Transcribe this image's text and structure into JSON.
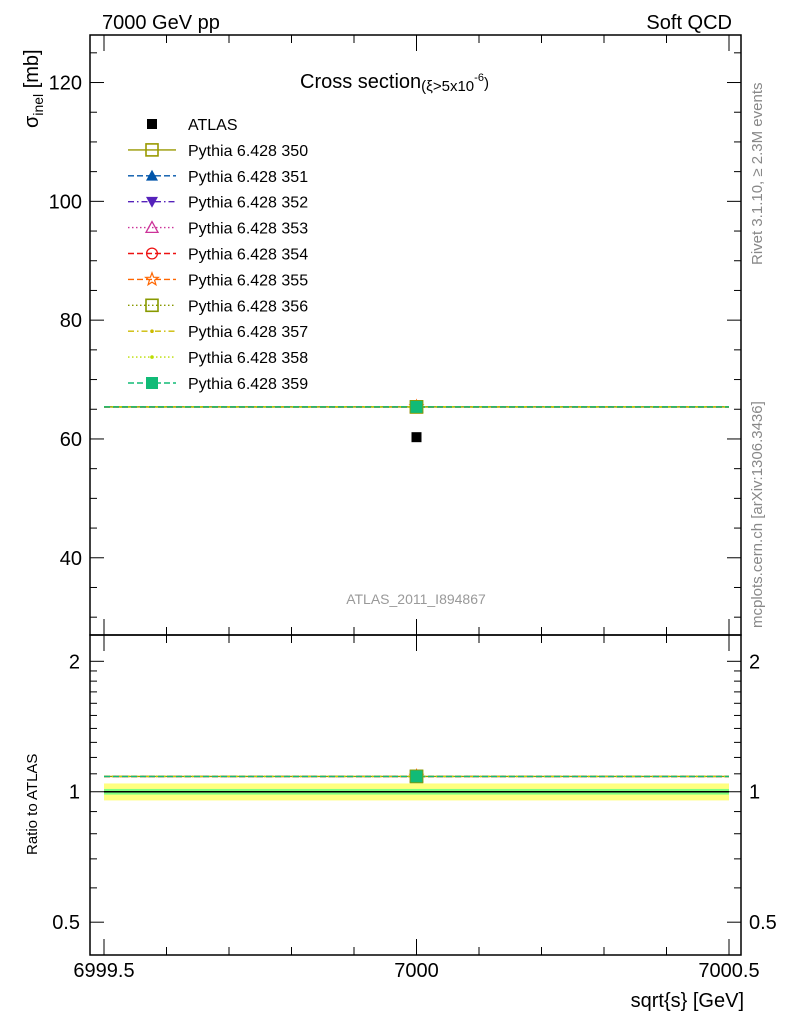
{
  "header": {
    "left": "7000 GeV pp",
    "right": "Soft QCD"
  },
  "side_labels": {
    "rivet": "Rivet 3.1.10, ≥ 2.3M events",
    "mcplots": "mcplots.cern.ch [arXiv:1306.3436]"
  },
  "watermark": "ATLAS_2011_I894867",
  "colors": {
    "atlas": "#000000",
    "band_inner": "#7fff7f",
    "band_outer": "#ffff7f",
    "frame": "#000000"
  },
  "chart_data": [
    {
      "type": "scatter",
      "panel": "main",
      "title": "Cross section",
      "title_sub": "(ξ>5x10",
      "title_sup": "-6",
      "title_close": ")",
      "ylabel_main": "σ",
      "ylabel_sub": "inel",
      "ylabel_unit": " [mb]",
      "xlim": [
        6999.5,
        7000.5
      ],
      "ylim": [
        27,
        128
      ],
      "yticks_major": [
        40,
        60,
        80,
        100,
        120
      ],
      "ytick_labels": [
        "40",
        "60",
        "80",
        "100",
        "120"
      ],
      "legend_position": "top-left",
      "series": [
        {
          "name": "ATLAS",
          "x": [
            7000
          ],
          "y": [
            60.3
          ],
          "color": "#000000",
          "marker": "square-filled",
          "line": "none"
        },
        {
          "name": "Pythia 6.428 350",
          "x": [
            6999.5,
            7000,
            7000.5
          ],
          "y": [
            65.4,
            65.4,
            65.4
          ],
          "color": "#999900",
          "marker": "square-open",
          "line": "solid"
        },
        {
          "name": "Pythia 6.428 351",
          "x": [
            6999.5,
            7000,
            7000.5
          ],
          "y": [
            65.4,
            65.4,
            65.4
          ],
          "color": "#0055aa",
          "marker": "triangle-up-filled",
          "line": "dashed"
        },
        {
          "name": "Pythia 6.428 352",
          "x": [
            6999.5,
            7000,
            7000.5
          ],
          "y": [
            65.4,
            65.4,
            65.4
          ],
          "color": "#5522bb",
          "marker": "triangle-down-filled",
          "line": "dashdot"
        },
        {
          "name": "Pythia 6.428 353",
          "x": [
            6999.5,
            7000,
            7000.5
          ],
          "y": [
            65.4,
            65.4,
            65.4
          ],
          "color": "#cc3399",
          "marker": "triangle-up-open",
          "line": "dotted"
        },
        {
          "name": "Pythia 6.428 354",
          "x": [
            6999.5,
            7000,
            7000.5
          ],
          "y": [
            65.4,
            65.4,
            65.4
          ],
          "color": "#ee1111",
          "marker": "circle-open",
          "line": "dashed"
        },
        {
          "name": "Pythia 6.428 355",
          "x": [
            6999.5,
            7000,
            7000.5
          ],
          "y": [
            65.4,
            65.4,
            65.4
          ],
          "color": "#ff6600",
          "marker": "star-open",
          "line": "dashed"
        },
        {
          "name": "Pythia 6.428 356",
          "x": [
            6999.5,
            7000,
            7000.5
          ],
          "y": [
            65.4,
            65.4,
            65.4
          ],
          "color": "#889900",
          "marker": "square-open",
          "line": "dotted"
        },
        {
          "name": "Pythia 6.428 357",
          "x": [
            6999.5,
            7000,
            7000.5
          ],
          "y": [
            65.4,
            65.4,
            65.4
          ],
          "color": "#ccbb00",
          "marker": "dot",
          "line": "dashdot"
        },
        {
          "name": "Pythia 6.428 358",
          "x": [
            6999.5,
            7000,
            7000.5
          ],
          "y": [
            65.4,
            65.4,
            65.4
          ],
          "color": "#bbdd00",
          "marker": "dot",
          "line": "dotted"
        },
        {
          "name": "Pythia 6.428 359",
          "x": [
            6999.5,
            7000,
            7000.5
          ],
          "y": [
            65.4,
            65.4,
            65.4
          ],
          "color": "#11bb77",
          "marker": "square-filled",
          "line": "dashed"
        }
      ]
    },
    {
      "type": "line",
      "panel": "ratio",
      "ylabel": "Ratio to ATLAS",
      "xlabel": "sqrt{s} [GeV]",
      "xlim": [
        6999.5,
        7000.5
      ],
      "ylim": [
        0.42,
        2.3
      ],
      "log_y": true,
      "yticks_major": [
        0.5,
        1,
        2
      ],
      "ytick_labels": [
        "0.5",
        "1",
        "2"
      ],
      "xticks_major": [
        6999.5,
        7000,
        7000.5
      ],
      "xtick_labels": [
        "6999.5",
        "7000",
        "7000.5"
      ],
      "reference": 1,
      "band_inner": [
        0.985,
        1.015
      ],
      "band_outer": [
        0.955,
        1.045
      ],
      "series": [
        {
          "name": "Pythia 6.428 350",
          "ratio": 1.085
        },
        {
          "name": "Pythia 6.428 351",
          "ratio": 1.085
        },
        {
          "name": "Pythia 6.428 352",
          "ratio": 1.085
        },
        {
          "name": "Pythia 6.428 353",
          "ratio": 1.085
        },
        {
          "name": "Pythia 6.428 354",
          "ratio": 1.085
        },
        {
          "name": "Pythia 6.428 355",
          "ratio": 1.085
        },
        {
          "name": "Pythia 6.428 356",
          "ratio": 1.085
        },
        {
          "name": "Pythia 6.428 357",
          "ratio": 1.085
        },
        {
          "name": "Pythia 6.428 358",
          "ratio": 1.085
        },
        {
          "name": "Pythia 6.428 359",
          "ratio": 1.085
        }
      ]
    }
  ]
}
